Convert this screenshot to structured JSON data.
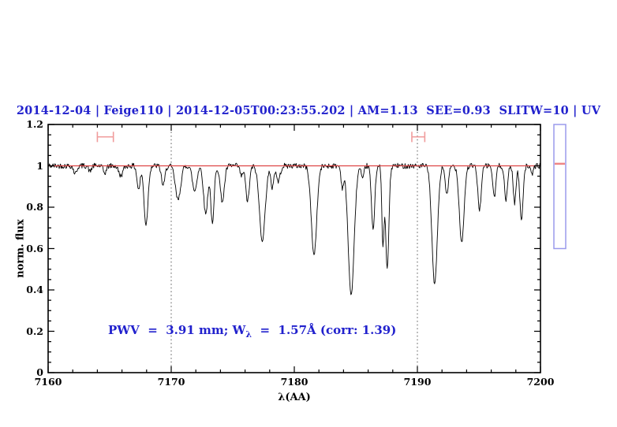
{
  "header": {
    "title": "2014-12-04 | Feige110 | 2014-12-05T00:23:55.202 | AM=1.13  SEE=0.93  SLITW=10 | UV"
  },
  "annotation": {
    "prefix": "PWV  =  3.91 mm; W",
    "sub": "λ",
    "suffix": "  =  1.57Å (corr: 1.39)"
  },
  "colors": {
    "text_blue": "#2121cd",
    "reference_red": "#dd4444",
    "marker_pink": "#f09c9c",
    "gauge_border": "#9a9aec",
    "gauge_level_red": "#ef8585",
    "spectrum_black": "#000000",
    "guide_gray": "#555555"
  },
  "side_gauge": {
    "top_flux": 1.2,
    "bottom_flux": 0.6,
    "level_flux": 1.01
  },
  "chart_data": {
    "type": "line",
    "title": "2014-12-04 | Feige110 | 2014-12-05T00:23:55.202 | AM=1.13  SEE=0.93  SLITW=10 | UV",
    "xlabel": "λ(AA)",
    "ylabel": "norm. flux",
    "xlim": [
      7160,
      7200
    ],
    "ylim": [
      0,
      1.2
    ],
    "x_major_ticks": [
      7160,
      7170,
      7180,
      7190,
      7200
    ],
    "x_tick_labels": [
      "7160",
      "7170",
      "7180",
      "7190",
      "7200"
    ],
    "x_minor_step_aa": 2,
    "y_major_ticks": [
      0,
      0.2,
      0.4,
      0.6,
      0.8,
      1,
      1.2
    ],
    "y_tick_labels": [
      "0",
      "0.2",
      "0.4",
      "0.6",
      "0.8",
      "1",
      "1.2"
    ],
    "y_minor_step": 0.05,
    "grid": "off",
    "legend": "none",
    "series_name": "normalized telluric absorption spectrum",
    "continuum_flux": 1.0,
    "noise_amplitude": 0.013,
    "sample_step_aa": 0.05,
    "reference_line_flux": 1.0,
    "dotted_guides_aa": [
      7170,
      7190
    ],
    "ew_markers": [
      {
        "from_aa": 7164.0,
        "to_aa": 7165.3,
        "flux": 1.14,
        "cap_halfheight_flux": 0.025
      },
      {
        "from_aa": 7189.55,
        "to_aa": 7190.6,
        "flux": 1.14,
        "cap_halfheight_flux": 0.025
      }
    ],
    "absorption_lines": [
      {
        "center_aa": 7162.2,
        "min_flux": 0.962,
        "fwhm_aa": 0.3
      },
      {
        "center_aa": 7163.4,
        "min_flux": 0.972,
        "fwhm_aa": 0.25
      },
      {
        "center_aa": 7164.6,
        "min_flux": 0.965,
        "fwhm_aa": 0.3
      },
      {
        "center_aa": 7165.9,
        "min_flux": 0.952,
        "fwhm_aa": 0.4
      },
      {
        "center_aa": 7167.35,
        "min_flux": 0.885,
        "fwhm_aa": 0.3
      },
      {
        "center_aa": 7167.95,
        "min_flux": 0.715,
        "fwhm_aa": 0.38
      },
      {
        "center_aa": 7169.35,
        "min_flux": 0.905,
        "fwhm_aa": 0.33
      },
      {
        "center_aa": 7170.55,
        "min_flux": 0.835,
        "fwhm_aa": 0.5
      },
      {
        "center_aa": 7171.9,
        "min_flux": 0.878,
        "fwhm_aa": 0.42
      },
      {
        "center_aa": 7172.8,
        "min_flux": 0.768,
        "fwhm_aa": 0.4
      },
      {
        "center_aa": 7173.35,
        "min_flux": 0.717,
        "fwhm_aa": 0.31
      },
      {
        "center_aa": 7174.15,
        "min_flux": 0.828,
        "fwhm_aa": 0.4
      },
      {
        "center_aa": 7175.7,
        "min_flux": 0.95,
        "fwhm_aa": 0.26
      },
      {
        "center_aa": 7176.2,
        "min_flux": 0.83,
        "fwhm_aa": 0.35
      },
      {
        "center_aa": 7177.4,
        "min_flux": 0.64,
        "fwhm_aa": 0.55
      },
      {
        "center_aa": 7178.2,
        "min_flux": 0.895,
        "fwhm_aa": 0.28
      },
      {
        "center_aa": 7178.7,
        "min_flux": 0.925,
        "fwhm_aa": 0.35
      },
      {
        "center_aa": 7181.6,
        "min_flux": 0.57,
        "fwhm_aa": 0.52
      },
      {
        "center_aa": 7183.9,
        "min_flux": 0.9,
        "fwhm_aa": 0.24
      },
      {
        "center_aa": 7184.62,
        "min_flux": 0.375,
        "fwhm_aa": 0.57
      },
      {
        "center_aa": 7185.55,
        "min_flux": 0.93,
        "fwhm_aa": 0.24
      },
      {
        "center_aa": 7186.4,
        "min_flux": 0.69,
        "fwhm_aa": 0.31
      },
      {
        "center_aa": 7187.2,
        "min_flux": 0.62,
        "fwhm_aa": 0.21
      },
      {
        "center_aa": 7187.55,
        "min_flux": 0.5,
        "fwhm_aa": 0.31
      },
      {
        "center_aa": 7191.4,
        "min_flux": 0.428,
        "fwhm_aa": 0.52
      },
      {
        "center_aa": 7192.4,
        "min_flux": 0.858,
        "fwhm_aa": 0.3
      },
      {
        "center_aa": 7193.6,
        "min_flux": 0.63,
        "fwhm_aa": 0.45
      },
      {
        "center_aa": 7195.05,
        "min_flux": 0.79,
        "fwhm_aa": 0.33
      },
      {
        "center_aa": 7196.25,
        "min_flux": 0.845,
        "fwhm_aa": 0.28
      },
      {
        "center_aa": 7197.2,
        "min_flux": 0.83,
        "fwhm_aa": 0.28
      },
      {
        "center_aa": 7197.9,
        "min_flux": 0.82,
        "fwhm_aa": 0.26
      },
      {
        "center_aa": 7198.45,
        "min_flux": 0.74,
        "fwhm_aa": 0.31
      },
      {
        "center_aa": 7199.3,
        "min_flux": 0.955,
        "fwhm_aa": 0.24
      }
    ]
  }
}
